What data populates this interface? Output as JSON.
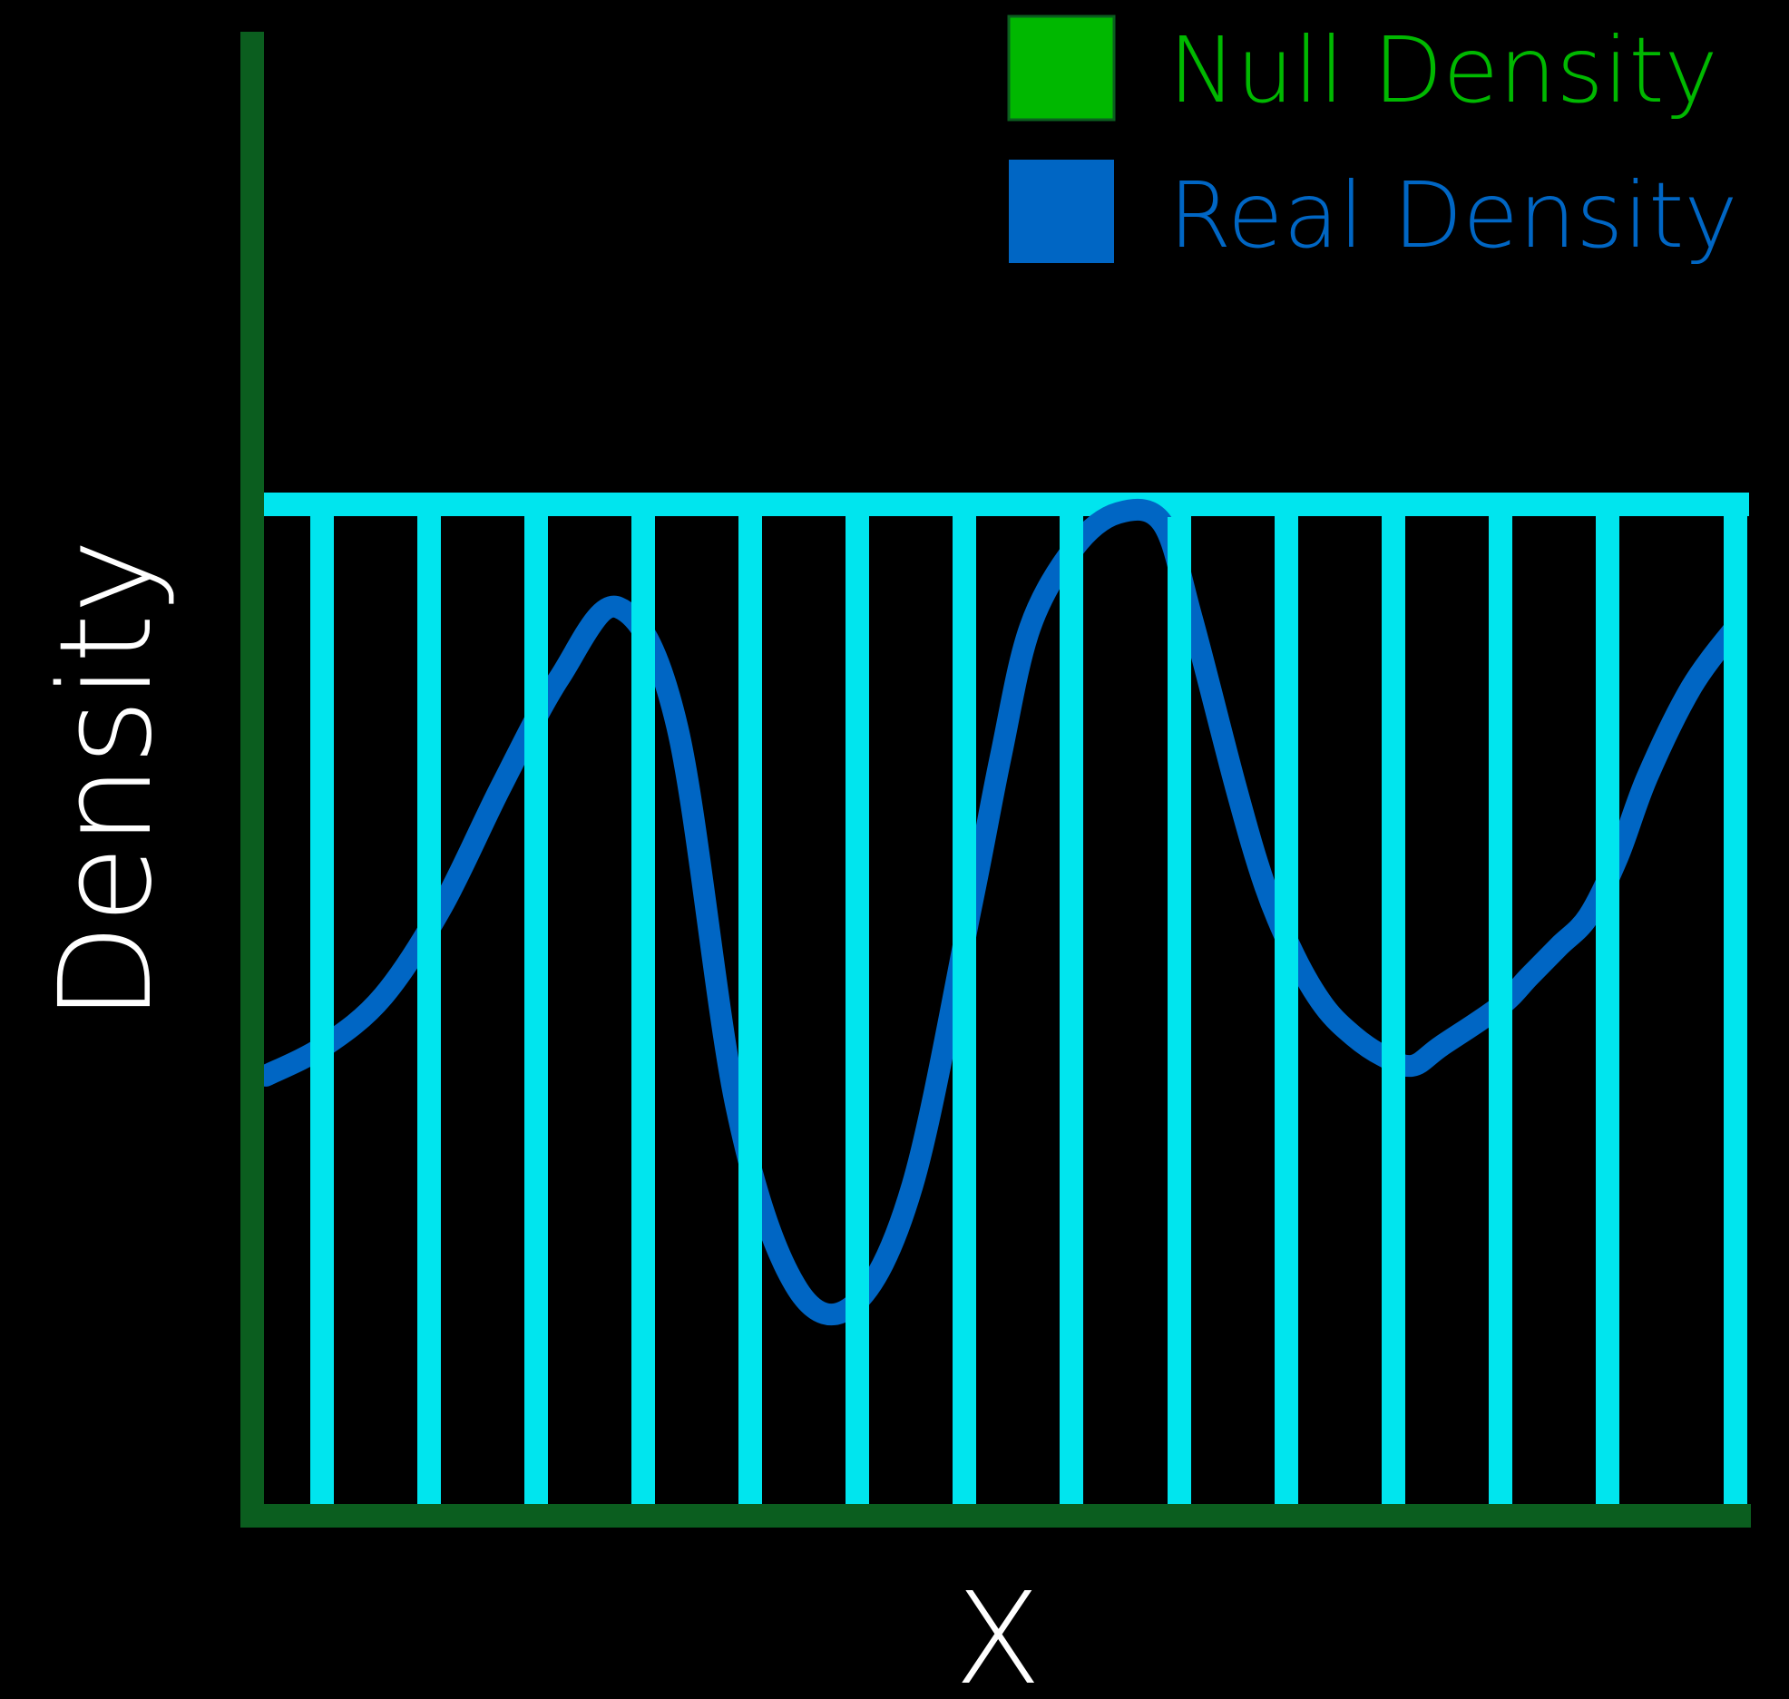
{
  "chart_data": {
    "type": "line",
    "xlabel": "X",
    "ylabel": "Density",
    "xlim": [
      0,
      1
    ],
    "ylim": [
      0,
      1
    ],
    "grid": false,
    "legend_position": "top-right",
    "axis_color": "#0b5e1f",
    "background": "#000000",
    "series": [
      {
        "name": "Null Density",
        "color": "#00b800",
        "style": "uniform-block",
        "bar_color": "#00e5ee",
        "x": [
          0.0,
          1.0
        ],
        "y": [
          1.0,
          1.0
        ]
      },
      {
        "name": "Real Density",
        "color": "#0066c4",
        "style": "line",
        "x": [
          0.0,
          0.04,
          0.08,
          0.12,
          0.16,
          0.2,
          0.24,
          0.28,
          0.32,
          0.36,
          0.4,
          0.44,
          0.48,
          0.5,
          0.52,
          0.55,
          0.58,
          0.61,
          0.63,
          0.66,
          0.68,
          0.7,
          0.72,
          0.74,
          0.76,
          0.78,
          0.8,
          0.84,
          0.86,
          0.88,
          0.9,
          0.92,
          0.94,
          0.97,
          1.0
        ],
        "y": [
          0.43,
          0.46,
          0.51,
          0.6,
          0.72,
          0.83,
          0.9,
          0.78,
          0.4,
          0.22,
          0.2,
          0.32,
          0.6,
          0.75,
          0.88,
          0.96,
          0.995,
          0.985,
          0.89,
          0.72,
          0.62,
          0.55,
          0.5,
          0.47,
          0.45,
          0.44,
          0.46,
          0.5,
          0.53,
          0.56,
          0.59,
          0.65,
          0.73,
          0.82,
          0.88
        ]
      }
    ]
  }
}
